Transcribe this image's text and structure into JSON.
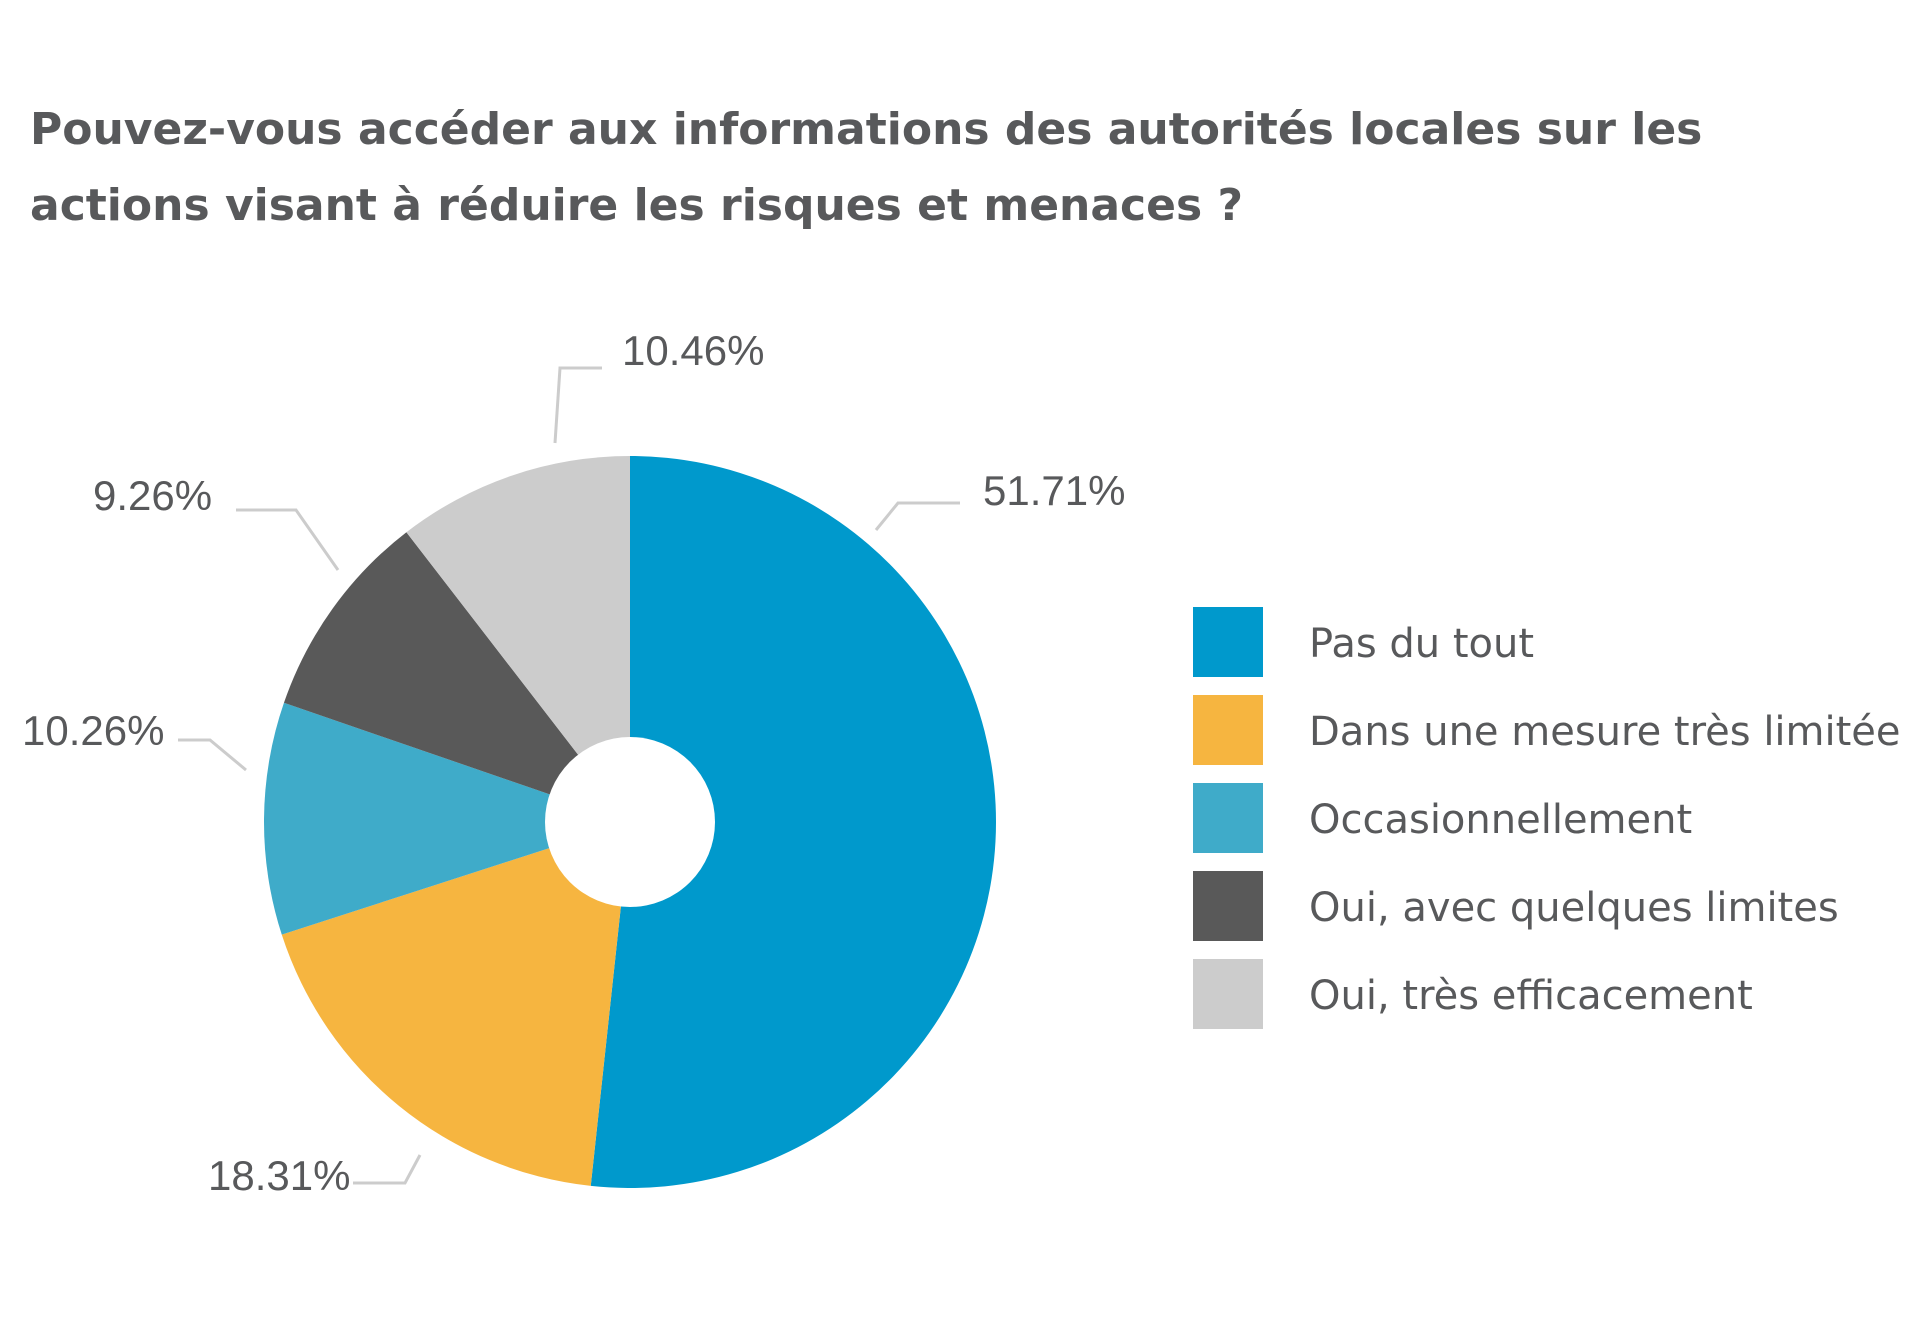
{
  "chart_data": {
    "type": "pie",
    "title": "Pouvez-vous accéder aux informations des autorités locales sur les actions visant à réduire les risques et menaces ?",
    "categories": [
      "Pas du tout",
      "Dans une mesure très limitée",
      "Occasionnellement",
      "Oui, avec quelques limites",
      "Oui, très efficacement"
    ],
    "values": [
      51.71,
      18.31,
      10.26,
      9.26,
      10.46
    ],
    "labels": [
      "51.71%",
      "18.31%",
      "10.26%",
      "9.26%",
      "10.46%"
    ],
    "colors": [
      "#0099cc",
      "#f6b540",
      "#3fabc9",
      "#595959",
      "#cccccc"
    ],
    "legend_position": "right",
    "donut": true
  }
}
